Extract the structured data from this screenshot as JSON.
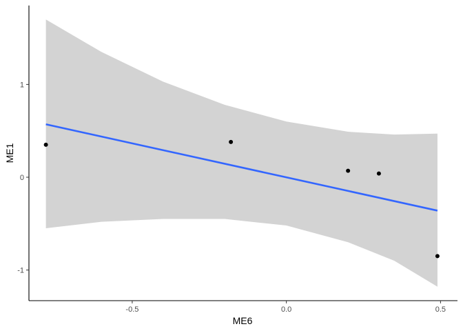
{
  "chart_data": {
    "type": "scatter",
    "title": "",
    "xlabel": "ME6",
    "ylabel": "ME1",
    "xlim": [
      -0.835,
      0.555
    ],
    "ylim": [
      -1.33,
      1.85
    ],
    "x_ticks": [
      {
        "value": -0.5,
        "label": "-0.5"
      },
      {
        "value": 0.0,
        "label": "0.0"
      },
      {
        "value": 0.5,
        "label": "0.5"
      }
    ],
    "y_ticks": [
      {
        "value": -1,
        "label": "-1"
      },
      {
        "value": 0,
        "label": "0"
      },
      {
        "value": 1,
        "label": "1"
      }
    ],
    "points": [
      {
        "x": -0.78,
        "y": 0.35
      },
      {
        "x": -0.18,
        "y": 0.38
      },
      {
        "x": 0.2,
        "y": 0.07
      },
      {
        "x": 0.3,
        "y": 0.04
      },
      {
        "x": 0.49,
        "y": -0.85
      }
    ],
    "fit_line": {
      "x": [
        -0.78,
        0.49
      ],
      "y": [
        0.57,
        -0.36
      ]
    },
    "confidence_band": {
      "x": [
        -0.78,
        -0.6,
        -0.4,
        -0.2,
        0.0,
        0.2,
        0.35,
        0.49
      ],
      "upper": [
        1.7,
        1.35,
        1.03,
        0.78,
        0.6,
        0.49,
        0.46,
        0.47
      ],
      "lower": [
        -0.55,
        -0.48,
        -0.45,
        -0.45,
        -0.52,
        -0.7,
        -0.9,
        -1.18
      ]
    },
    "grid": false,
    "colors": {
      "fit_line": "#3366ff",
      "band": "#d3d3d3",
      "points": "#000000",
      "axes": "#000000"
    }
  }
}
